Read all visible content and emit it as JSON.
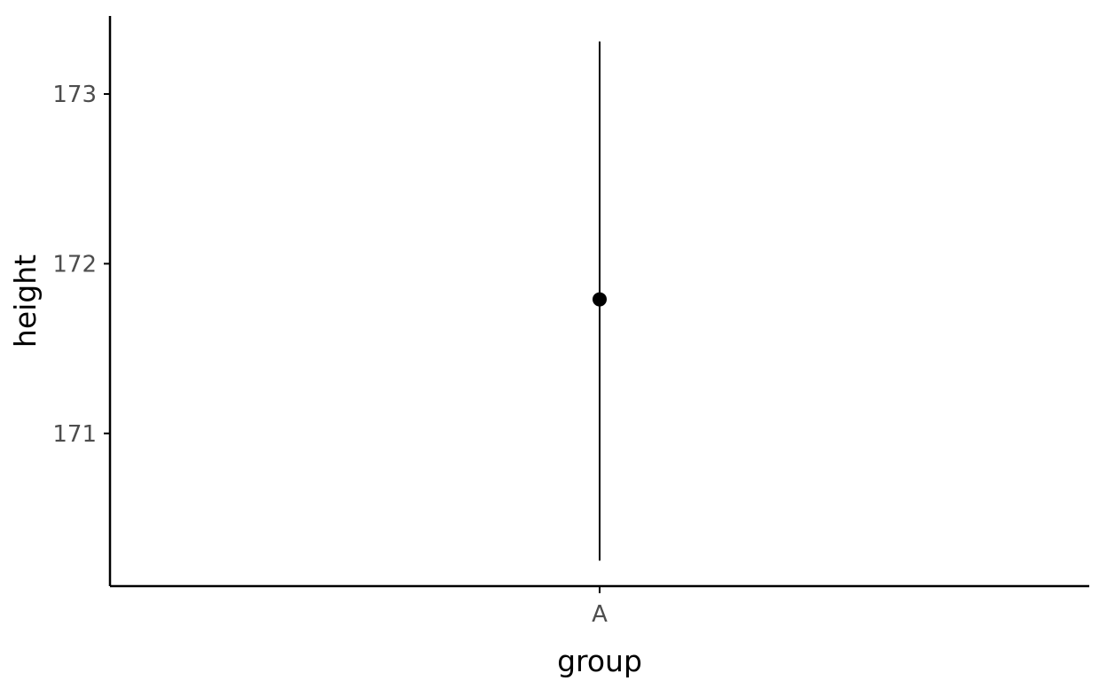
{
  "chart_data": {
    "type": "pointrange",
    "categories": [
      "A"
    ],
    "series": [
      {
        "points": [
          {
            "x": "A",
            "y": 171.79,
            "ymin": 170.25,
            "ymax": 173.31
          }
        ]
      }
    ],
    "xlabel": "group",
    "ylabel": "height",
    "yticks": [
      171,
      172,
      173
    ],
    "ylim": [
      170.1,
      173.46
    ],
    "grid": false,
    "legend": "none",
    "colors": {
      "point": "#000000",
      "axis": "#000000",
      "tick_text": "#4d4d4d"
    }
  }
}
